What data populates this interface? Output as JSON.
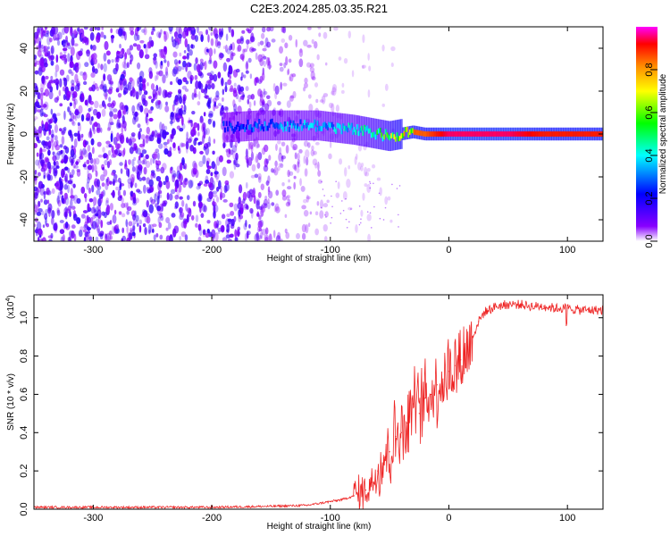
{
  "title": "C2E3.2024.285.03.35.R21",
  "chart_data": [
    {
      "type": "heatmap",
      "name": "spectrogram",
      "xlabel": "Height of straight line (km)",
      "ylabel": "Frequency (Hz)",
      "xlim": [
        -350,
        130
      ],
      "ylim": [
        -50,
        50
      ],
      "xticks": [
        "-300",
        "-200",
        "-100",
        "0",
        "100"
      ],
      "yticks": [
        "-40",
        "-20",
        "0",
        "20",
        "40"
      ],
      "colorbar": {
        "label": "Normalized spectral amplitude",
        "ticks": [
          "0.0",
          "0.2",
          "0.4",
          "0.6",
          "0.8"
        ],
        "range": [
          0,
          1
        ],
        "colormap": [
          "#ffffff",
          "#8800ff",
          "#0000ff",
          "#00ffff",
          "#00ff00",
          "#ffff00",
          "#ff8800",
          "#ff0000",
          "#ff00ff"
        ]
      },
      "noise_region_x": [
        -350,
        -105
      ],
      "ridge": {
        "x": [
          -190,
          -160,
          -130,
          -110,
          -95,
          -80,
          -70,
          -60,
          -50,
          -40,
          -30,
          -20,
          -10,
          0,
          20,
          50,
          80,
          100,
          130
        ],
        "freq": [
          3,
          4,
          4,
          4,
          3,
          2,
          1,
          0,
          -1,
          0,
          1,
          0,
          0,
          0,
          0,
          0,
          0,
          0,
          0
        ],
        "amplitude": [
          0.3,
          0.35,
          0.4,
          0.42,
          0.45,
          0.5,
          0.55,
          0.6,
          0.7,
          0.8,
          0.85,
          0.85,
          0.9,
          0.95,
          0.95,
          0.95,
          0.9,
          0.9,
          0.9
        ]
      },
      "grid": false
    },
    {
      "type": "line",
      "name": "snr",
      "xlabel": "Height of straight line (km)",
      "ylabel": "SNR (10 * v/v)",
      "scale_label": "(x10",
      "scale_exp": "4",
      "scale_close": ")",
      "xlim": [
        -350,
        130
      ],
      "ylim": [
        0,
        1.12
      ],
      "xticks": [
        "-300",
        "-200",
        "-100",
        "0",
        "100"
      ],
      "yticks": [
        "0.0",
        "0.2",
        "0.4",
        "0.6",
        "0.8",
        "1.0"
      ],
      "color": "#ee2222",
      "x": [
        -350,
        -300,
        -250,
        -200,
        -150,
        -120,
        -100,
        -90,
        -80,
        -70,
        -65,
        -60,
        -55,
        -50,
        -45,
        -40,
        -35,
        -30,
        -25,
        -20,
        -15,
        -10,
        -5,
        0,
        5,
        10,
        15,
        20,
        25,
        30,
        40,
        50,
        60,
        70,
        80,
        90,
        100,
        110,
        120,
        130
      ],
      "y": [
        0.01,
        0.01,
        0.01,
        0.01,
        0.015,
        0.02,
        0.04,
        0.05,
        0.07,
        0.1,
        0.14,
        0.2,
        0.28,
        0.3,
        0.38,
        0.4,
        0.45,
        0.55,
        0.5,
        0.58,
        0.6,
        0.65,
        0.68,
        0.72,
        0.75,
        0.78,
        0.82,
        0.9,
        0.98,
        1.03,
        1.06,
        1.07,
        1.07,
        1.06,
        1.06,
        1.05,
        1.05,
        1.04,
        1.04,
        1.04
      ]
    }
  ]
}
